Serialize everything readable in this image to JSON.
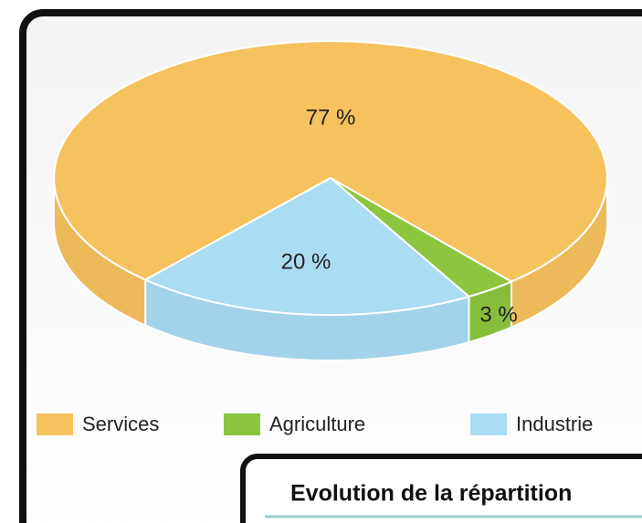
{
  "chart_data": {
    "type": "pie",
    "categories": [
      "Services",
      "Agriculture",
      "Industrie"
    ],
    "values": [
      77,
      3,
      20
    ],
    "value_labels": [
      "77 %",
      "3 %",
      "20 %"
    ],
    "colors": [
      "#f6c25e",
      "#8cc63f",
      "#aadcf4"
    ]
  },
  "inset": {
    "title": "Evolution de la répartition"
  }
}
